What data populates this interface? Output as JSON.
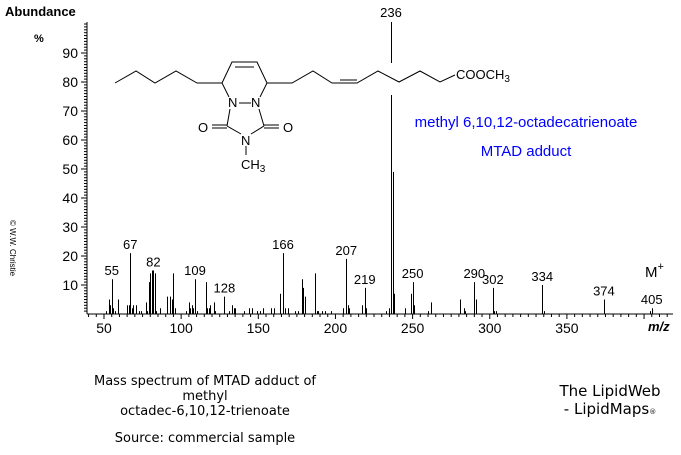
{
  "chart_data": {
    "type": "bar",
    "ylabel": "Abundance",
    "yunit": "%",
    "xlabel": "m/z",
    "xlim": [
      39,
      419
    ],
    "ylim": [
      0,
      100
    ],
    "xticks": [
      50,
      100,
      150,
      200,
      250,
      300,
      350
    ],
    "yticks": [
      10,
      20,
      30,
      40,
      50,
      60,
      70,
      80,
      90
    ],
    "peaks": [
      [
        51,
        1
      ],
      [
        53,
        5
      ],
      [
        54,
        3
      ],
      [
        55,
        12
      ],
      [
        56,
        2
      ],
      [
        57,
        1
      ],
      [
        59,
        5
      ],
      [
        65,
        3
      ],
      [
        66,
        3
      ],
      [
        67,
        21
      ],
      [
        68,
        2
      ],
      [
        69,
        3
      ],
      [
        71,
        3
      ],
      [
        73,
        1
      ],
      [
        74,
        1
      ],
      [
        77,
        4
      ],
      [
        78,
        1
      ],
      [
        79,
        11
      ],
      [
        80,
        14
      ],
      [
        81,
        15
      ],
      [
        82,
        15
      ],
      [
        83,
        14
      ],
      [
        84,
        1
      ],
      [
        86,
        2
      ],
      [
        91,
        6
      ],
      [
        93,
        6
      ],
      [
        94,
        5
      ],
      [
        95,
        14
      ],
      [
        96,
        2
      ],
      [
        103,
        1
      ],
      [
        105,
        4
      ],
      [
        106,
        2
      ],
      [
        107,
        3
      ],
      [
        108,
        2
      ],
      [
        109,
        12
      ],
      [
        110,
        1
      ],
      [
        116,
        11
      ],
      [
        117,
        2
      ],
      [
        118,
        2
      ],
      [
        119,
        3
      ],
      [
        121,
        4
      ],
      [
        122,
        1
      ],
      [
        128,
        6
      ],
      [
        131,
        1
      ],
      [
        133,
        3
      ],
      [
        134,
        2
      ],
      [
        135,
        2
      ],
      [
        141,
        1
      ],
      [
        144,
        2
      ],
      [
        146,
        2
      ],
      [
        149,
        1
      ],
      [
        151,
        1
      ],
      [
        153,
        2
      ],
      [
        158,
        2
      ],
      [
        160,
        2
      ],
      [
        164,
        7
      ],
      [
        166,
        21
      ],
      [
        167,
        2
      ],
      [
        169,
        2
      ],
      [
        174,
        1
      ],
      [
        176,
        1
      ],
      [
        178,
        12
      ],
      [
        179,
        9
      ],
      [
        180,
        6
      ],
      [
        187,
        14
      ],
      [
        188,
        1
      ],
      [
        189,
        1
      ],
      [
        191,
        1
      ],
      [
        193,
        1
      ],
      [
        197,
        1
      ],
      [
        205,
        2
      ],
      [
        207,
        19
      ],
      [
        208,
        3
      ],
      [
        209,
        2
      ],
      [
        217,
        3
      ],
      [
        219,
        9
      ],
      [
        220,
        2
      ],
      [
        233,
        1
      ],
      [
        235,
        2
      ],
      [
        236,
        100
      ],
      [
        237,
        49
      ],
      [
        238,
        7
      ],
      [
        245,
        2
      ],
      [
        249,
        7
      ],
      [
        250,
        11
      ],
      [
        251,
        3
      ],
      [
        260,
        1
      ],
      [
        262,
        4
      ],
      [
        281,
        5
      ],
      [
        283,
        2
      ],
      [
        284,
        1
      ],
      [
        290,
        11
      ],
      [
        291,
        5
      ],
      [
        302,
        9
      ],
      [
        303,
        1
      ],
      [
        304,
        1
      ],
      [
        334,
        10
      ],
      [
        335,
        1
      ],
      [
        374,
        5
      ],
      [
        404,
        1
      ],
      [
        405,
        2
      ]
    ],
    "peak_labels": [
      "55",
      "67",
      "82",
      "109",
      "128",
      "166",
      "207",
      "219",
      "236",
      "250",
      "290",
      "302",
      "334",
      "374",
      "405"
    ],
    "annotations": {
      "molecular_ion": "M",
      "molecular_ion_sup": "+",
      "compound_line1": "methyl 6,10,12-octadecatrienoate",
      "compound_line2": "MTAD adduct",
      "color": "#0000ff"
    },
    "structure": {
      "N": "N",
      "O": "O",
      "CH": "CH",
      "sub3": "3",
      "ester": "COOCH"
    },
    "copyright": "© W.W. Christie"
  },
  "caption": {
    "line1": "Mass spectrum of MTAD adduct of methyl",
    "line2": "octadec-6,10,12-trienoate",
    "source": "Source:  commercial sample"
  },
  "branding": {
    "line1": "The LipidWeb",
    "line2": "- LipidMaps",
    "mark": "®"
  }
}
